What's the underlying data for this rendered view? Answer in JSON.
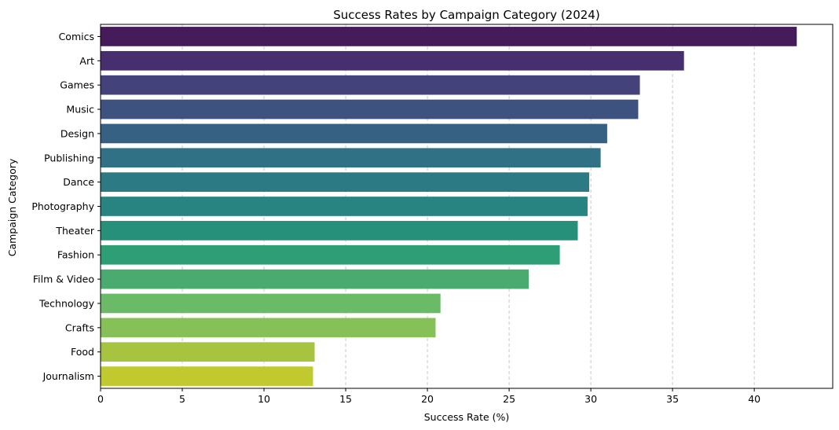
{
  "chart_data": {
    "type": "bar",
    "orientation": "horizontal",
    "title": "Success Rates by Campaign Category (2024)",
    "xlabel": "Success Rate (%)",
    "ylabel": "Campaign Category",
    "xlim": [
      0,
      44.8
    ],
    "xticks": [
      0,
      5,
      10,
      15,
      20,
      25,
      30,
      35,
      40
    ],
    "grid": "x-dashed",
    "legend": "none",
    "categories": [
      "Comics",
      "Art",
      "Games",
      "Music",
      "Design",
      "Publishing",
      "Dance",
      "Photography",
      "Theater",
      "Fashion",
      "Film & Video",
      "Technology",
      "Crafts",
      "Food",
      "Journalism"
    ],
    "values": [
      42.6,
      35.7,
      33.0,
      32.9,
      31.0,
      30.6,
      29.9,
      29.8,
      29.2,
      28.1,
      26.2,
      20.8,
      20.5,
      13.1,
      13.0
    ],
    "colors": [
      "#461b5a",
      "#472e6e",
      "#43427a",
      "#3d527f",
      "#366183",
      "#317186",
      "#2c7a84",
      "#288480",
      "#26907a",
      "#2e9e77",
      "#4aab70",
      "#6bbb66",
      "#86c157",
      "#a6c43f",
      "#c0c92e"
    ]
  }
}
